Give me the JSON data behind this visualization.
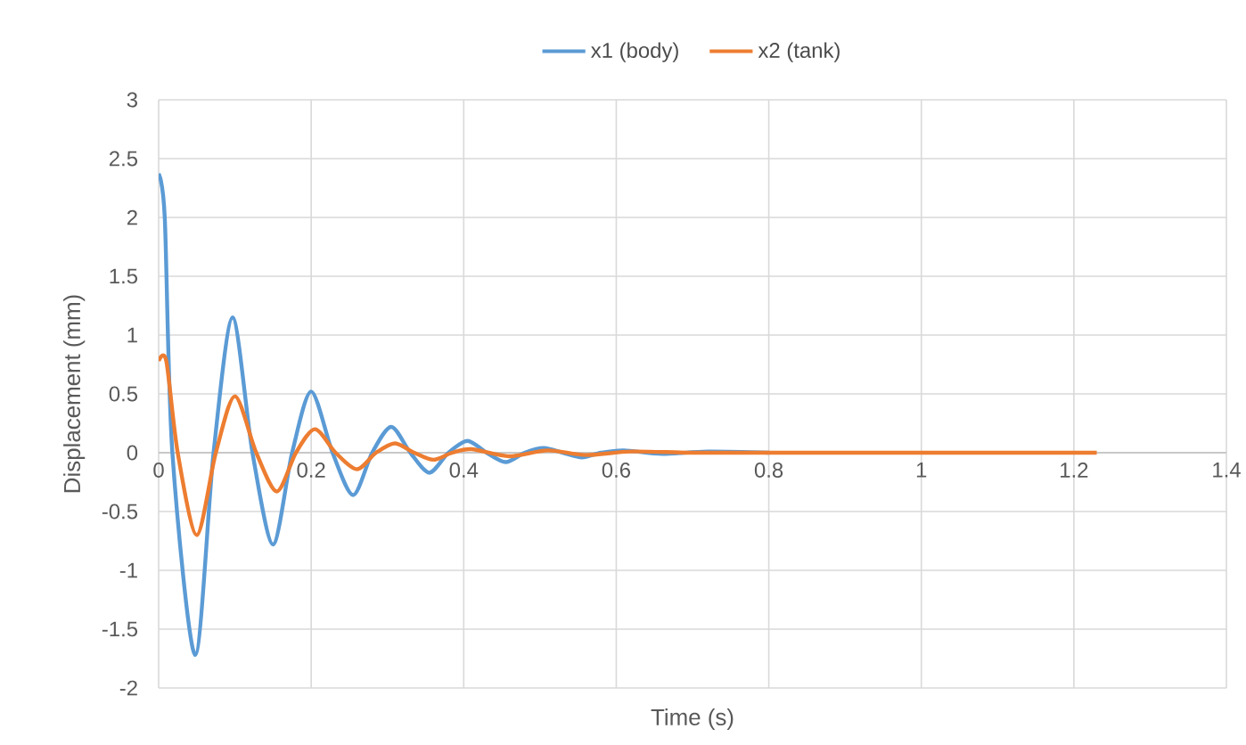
{
  "chart_data": {
    "type": "line",
    "xlabel": "Time (s)",
    "ylabel": "Displacement (mm)",
    "xlim": [
      0,
      1.4
    ],
    "xticks": [
      0,
      0.2,
      0.4,
      0.6,
      0.8,
      1,
      1.2,
      1.4
    ],
    "ylim": [
      -2,
      3
    ],
    "yticks": [
      -2,
      -1.5,
      -1,
      -0.5,
      0,
      0.5,
      1,
      1.5,
      2,
      2.5,
      3
    ],
    "grid": true,
    "legend": "top",
    "marker": "none",
    "line_style": "solid",
    "series": [
      {
        "name": "x1 (body)",
        "color": "#5b9bd5",
        "x": [
          0,
          0.008,
          0.018,
          0.048,
          0.072,
          0.097,
          0.123,
          0.15,
          0.175,
          0.2,
          0.228,
          0.255,
          0.28,
          0.305,
          0.33,
          0.355,
          0.38,
          0.405,
          0.43,
          0.455,
          0.48,
          0.505,
          0.53,
          0.555,
          0.58,
          0.61,
          0.66,
          0.72,
          0.8
        ],
        "values": [
          2.37,
          2.0,
          0,
          -1.72,
          0,
          1.15,
          0,
          -0.78,
          0,
          0.52,
          0,
          -0.36,
          0,
          0.22,
          0,
          -0.17,
          0,
          0.1,
          0,
          -0.08,
          0,
          0.04,
          0,
          -0.04,
          0,
          0.02,
          -0.01,
          0.01,
          0
        ]
      },
      {
        "name": "x2 (tank)",
        "color": "#ed7d31",
        "x": [
          0,
          0.01,
          0.025,
          0.05,
          0.075,
          0.1,
          0.128,
          0.155,
          0.18,
          0.205,
          0.232,
          0.26,
          0.285,
          0.31,
          0.335,
          0.36,
          0.385,
          0.41,
          0.46,
          0.51,
          0.56,
          0.62,
          0.7,
          0.8,
          1.0,
          1.23
        ],
        "values": [
          0.78,
          0.78,
          0,
          -0.7,
          0,
          0.48,
          0,
          -0.33,
          0,
          0.2,
          0,
          -0.14,
          0,
          0.08,
          0,
          -0.06,
          0,
          0.03,
          -0.03,
          0.02,
          -0.02,
          0.01,
          0,
          0,
          0,
          0
        ]
      }
    ]
  }
}
